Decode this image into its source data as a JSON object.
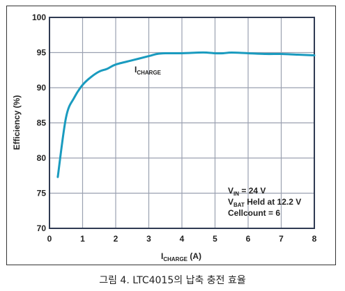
{
  "chart_data": {
    "type": "line",
    "ylabel": "Efficiency (%)",
    "xlabel_main": "I",
    "xlabel_sub": "CHARGE",
    "xlabel_unit": " (A)",
    "xlim": [
      0,
      8
    ],
    "ylim": [
      70,
      100
    ],
    "xticks": [
      0,
      1,
      2,
      3,
      4,
      5,
      6,
      7,
      8
    ],
    "yticks": [
      70,
      75,
      80,
      85,
      90,
      95,
      100
    ],
    "x_tick_labels": [
      "0",
      "1",
      "2",
      "3",
      "4",
      "5",
      "6",
      "7",
      "8"
    ],
    "y_tick_labels": [
      "70",
      "75",
      "80",
      "85",
      "90",
      "95",
      "100"
    ],
    "grid": true,
    "line_color": "#1a9bbf",
    "axis_color": "#2f3a52",
    "grid_color": "#9aa0b0",
    "series": [
      {
        "label_main": "I",
        "label_sub": "CHARGE",
        "x": [
          0.25,
          0.5,
          0.75,
          1.0,
          1.25,
          1.5,
          1.75,
          2.0,
          2.5,
          3.0,
          3.25,
          3.5,
          4.0,
          4.5,
          4.75,
          5.0,
          5.25,
          5.5,
          6.0,
          6.5,
          7.0,
          7.5,
          8.0
        ],
        "y": [
          77.3,
          85.8,
          88.6,
          90.4,
          91.5,
          92.3,
          92.7,
          93.3,
          93.9,
          94.5,
          94.8,
          94.9,
          94.9,
          95.0,
          95.0,
          94.9,
          94.9,
          95.0,
          94.9,
          94.8,
          94.8,
          94.7,
          94.6
        ]
      }
    ],
    "annotation": {
      "line1_main": "V",
      "line1_sub": "IN",
      "line1_rest": " = 24 V",
      "line2_main": "V",
      "line2_sub": "BAT",
      "line2_rest": " Held at 12.2 V",
      "line3": "Cellcount = 6"
    }
  },
  "caption": "그림 4. LTC4015의 납축 충전 효율"
}
